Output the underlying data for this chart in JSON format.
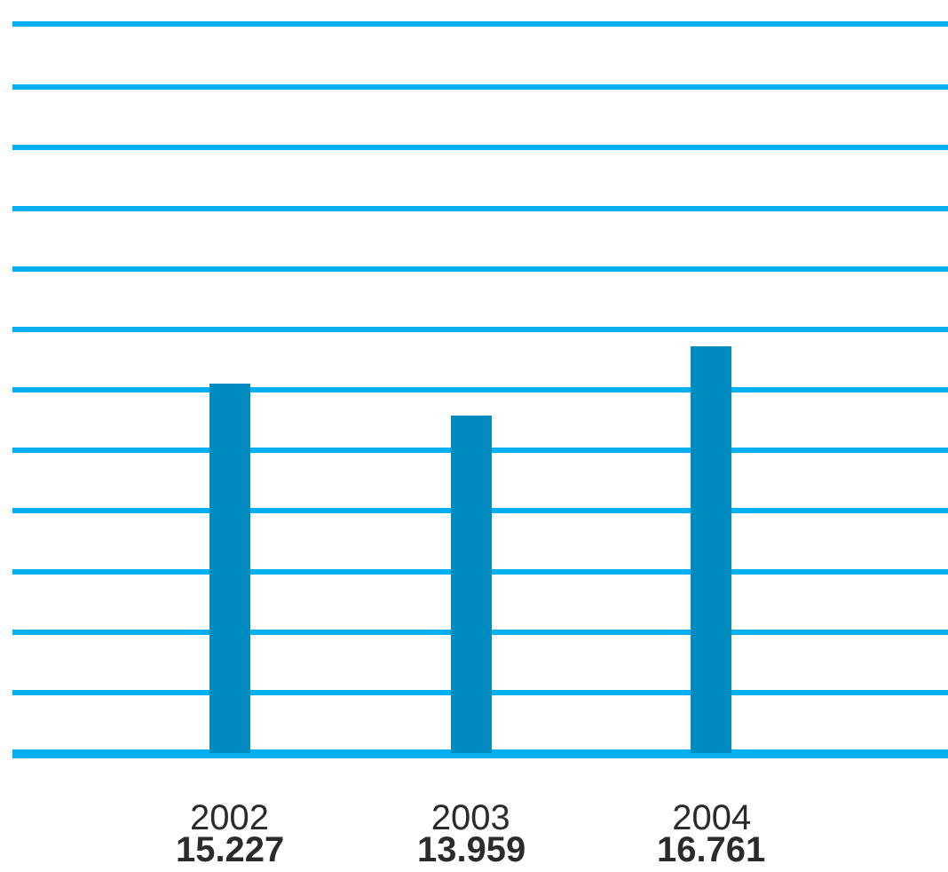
{
  "chart_data": {
    "type": "bar",
    "categories": [
      "2002",
      "2003",
      "2004"
    ],
    "values": [
      15.227,
      13.959,
      16.761
    ],
    "color": "#008bbf",
    "data_labels": true,
    "ylim": [
      0,
      30
    ],
    "yticks": [
      {
        "value": 0,
        "label": null
      },
      {
        "value": 2.5,
        "label": null
      },
      {
        "value": 5,
        "label": null
      },
      {
        "value": 7.5,
        "label": null
      },
      {
        "value": 10,
        "label": null
      },
      {
        "value": 12.5,
        "label": null
      },
      {
        "value": 15,
        "label": null
      },
      {
        "value": 17.5,
        "label": null
      },
      {
        "value": 20,
        "label": null
      },
      {
        "value": 22.5,
        "label": null
      },
      {
        "value": 25,
        "label": null
      },
      {
        "value": 27.5,
        "label": null
      },
      {
        "value": 30,
        "label": null
      }
    ],
    "tick_labels": "x",
    "grid": "y"
  }
}
